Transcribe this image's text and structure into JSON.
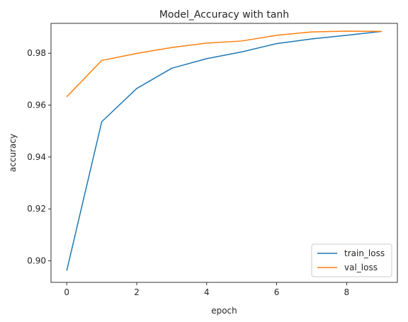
{
  "chart_data": {
    "type": "line",
    "title": "Model_Accuracy with tanh",
    "xlabel": "epoch",
    "ylabel": "accuracy",
    "x": [
      0,
      1,
      2,
      3,
      4,
      5,
      6,
      7,
      8,
      9
    ],
    "xlim": [
      -0.45,
      9.45
    ],
    "ylim": [
      0.8917,
      0.9915
    ],
    "xticks": [
      0,
      2,
      4,
      6,
      8
    ],
    "yticks": [
      0.9,
      0.92,
      0.94,
      0.96,
      0.98
    ],
    "xtick_labels": [
      "0",
      "2",
      "4",
      "6",
      "8"
    ],
    "ytick_labels": [
      "0.90",
      "0.92",
      "0.94",
      "0.96",
      "0.98"
    ],
    "grid": false,
    "legend_position": "lower-right",
    "series": [
      {
        "name": "train_loss",
        "color": "#1f77b4",
        "values": [
          0.8962,
          0.9536,
          0.9664,
          0.9742,
          0.9779,
          0.9805,
          0.9837,
          0.9855,
          0.9869,
          0.9884
        ]
      },
      {
        "name": "val_loss",
        "color": "#ff7f0e",
        "values": [
          0.9632,
          0.9772,
          0.9799,
          0.9822,
          0.9839,
          0.9847,
          0.9869,
          0.9882,
          0.9885,
          0.9884
        ]
      }
    ]
  }
}
